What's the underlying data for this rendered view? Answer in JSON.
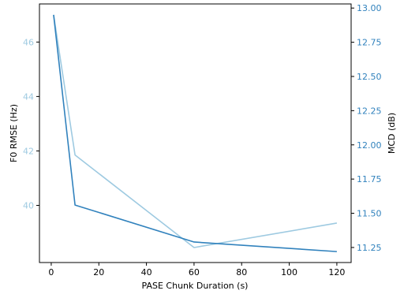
{
  "chart_data": {
    "type": "line",
    "xlabel": "PASE Chunk Duration (s)",
    "ylabel_left": "F0 RMSE (Hz)",
    "ylabel_right": "MCD (dB)",
    "xlim": [
      -4.95,
      126.0
    ],
    "ylim_left": [
      37.9,
      47.4
    ],
    "ylim_right": [
      11.14,
      13.03
    ],
    "x_ticks": [
      0,
      20,
      40,
      60,
      80,
      100,
      120
    ],
    "y_left_ticks": [
      40,
      42,
      44,
      46
    ],
    "y_right_ticks": [
      11.25,
      11.5,
      11.75,
      12.0,
      12.25,
      12.5,
      12.75,
      13.0
    ],
    "y_right_tick_labels": [
      "11.25",
      "11.50",
      "11.75",
      "12.00",
      "12.25",
      "12.50",
      "12.75",
      "13.00"
    ],
    "colors": {
      "left": "#9ecae1",
      "right": "#3182bd"
    },
    "series": [
      {
        "axis": "left",
        "color": "#9ecae1",
        "x": [
          1,
          10,
          60,
          120
        ],
        "y": [
          47.0,
          41.85,
          38.45,
          39.35
        ]
      },
      {
        "axis": "right",
        "color": "#3182bd",
        "x": [
          1,
          10,
          60,
          120
        ],
        "y": [
          12.95,
          11.56,
          11.29,
          11.22
        ]
      }
    ]
  }
}
